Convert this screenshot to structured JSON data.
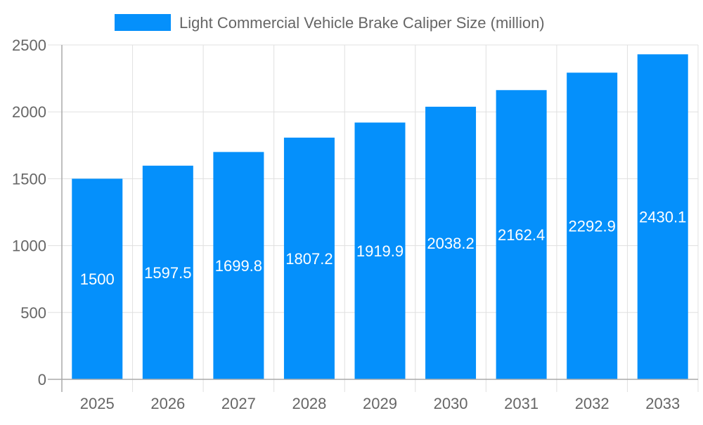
{
  "chart_data": {
    "type": "bar",
    "title": "",
    "xlabel": "",
    "ylabel": "",
    "categories": [
      "2025",
      "2026",
      "2027",
      "2028",
      "2029",
      "2030",
      "2031",
      "2032",
      "2033"
    ],
    "series": [
      {
        "name": "Light Commercial Vehicle Brake Caliper Size (million)",
        "values": [
          1500,
          1597.5,
          1699.8,
          1807.2,
          1919.9,
          2038.2,
          2162.4,
          2292.9,
          2430.1
        ],
        "labels": [
          "1500",
          "1597.5",
          "1699.8",
          "1807.2",
          "1919.9",
          "2038.2",
          "2162.4",
          "2292.9",
          "2430.1"
        ]
      }
    ],
    "ylim": [
      0,
      2500
    ],
    "yticks": [
      "0",
      "500",
      "1000",
      "1500",
      "2000",
      "2500"
    ],
    "grid": true,
    "legend_position": "top",
    "colors": {
      "bar": "#0590fb",
      "grid": "#e0e0e0",
      "axis": "#aaaaaa",
      "text": "#666666",
      "data_label": "#ffffff"
    }
  }
}
